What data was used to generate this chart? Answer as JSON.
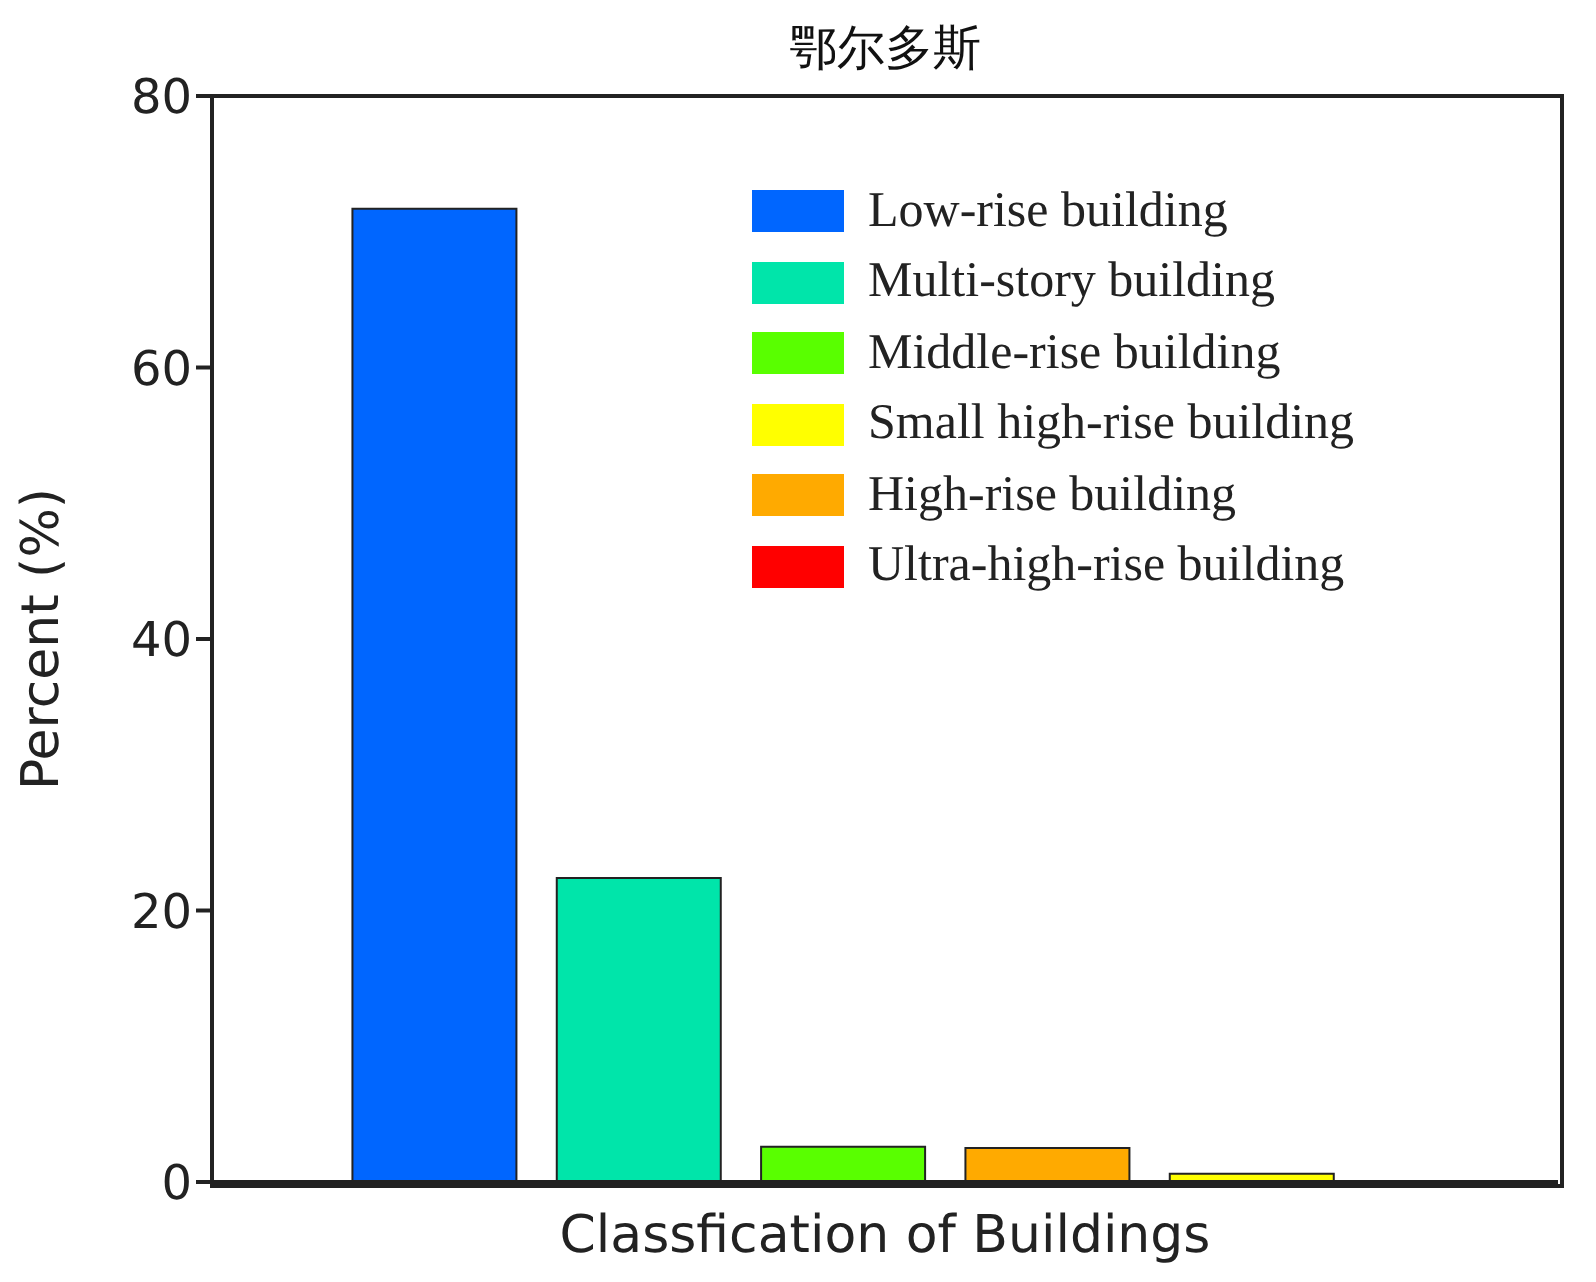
{
  "chart_data": {
    "type": "bar",
    "title": "鄂尔多斯",
    "xlabel": "Classfication of Buildings",
    "ylabel": "Percent (%)",
    "categories": [
      null,
      null,
      null,
      null,
      null,
      null
    ],
    "series": [
      {
        "name": "Low-rise building",
        "color": "#0066ff",
        "values": [
          71.7,
          null,
          null,
          null,
          null,
          null
        ]
      },
      {
        "name": "Multi-story building",
        "color": "#00e5aa",
        "values": [
          null,
          22.4,
          null,
          null,
          null,
          null
        ]
      },
      {
        "name": "Middle-rise building",
        "color": "#59ff00",
        "values": [
          null,
          null,
          2.6,
          null,
          null,
          null
        ]
      },
      {
        "name": "Small high-rise building",
        "color": "#ffff00",
        "values": [
          null,
          null,
          null,
          null,
          0.6,
          null
        ]
      },
      {
        "name": "High-rise building",
        "color": "#ffaa00",
        "values": [
          null,
          null,
          null,
          2.5,
          null,
          null
        ]
      },
      {
        "name": "Ultra-high-rise building",
        "color": "#ff0000",
        "values": [
          null,
          null,
          null,
          null,
          null,
          0
        ]
      }
    ],
    "ylim": [
      0,
      80
    ],
    "yticks": [
      0,
      20,
      40,
      60,
      80
    ],
    "legend": "top right"
  }
}
